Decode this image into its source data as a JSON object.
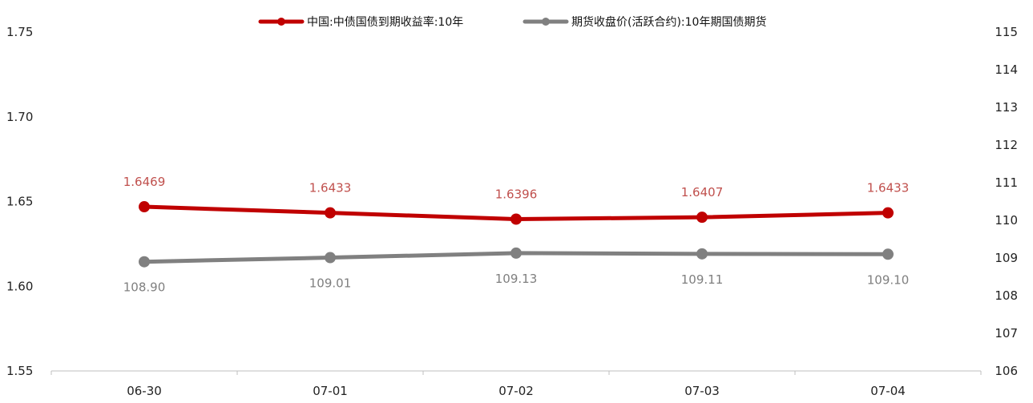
{
  "chart_data": {
    "type": "line",
    "categories": [
      "06-30",
      "07-01",
      "07-02",
      "07-03",
      "07-04"
    ],
    "series": [
      {
        "name": "中国:中债国债到期收益率:10年",
        "axis": "left",
        "color": "#C00000",
        "values": [
          1.6469,
          1.6433,
          1.6396,
          1.6407,
          1.6433
        ],
        "labels": [
          "1.6469",
          "1.6433",
          "1.6396",
          "1.6407",
          "1.6433"
        ]
      },
      {
        "name": "期货收盘价(活跃合约):10年期国债期货",
        "axis": "right",
        "color": "#808080",
        "values": [
          108.9,
          109.01,
          109.13,
          109.11,
          109.1
        ],
        "labels": [
          "108.90",
          "109.01",
          "109.13",
          "109.11",
          "109.10"
        ]
      }
    ],
    "y_left": {
      "min": 1.55,
      "max": 1.75,
      "ticks": [
        "1.55",
        "1.60",
        "1.65",
        "1.70",
        "1.75"
      ]
    },
    "y_right": {
      "min": 106,
      "max": 115,
      "ticks": [
        "106",
        "107",
        "108",
        "109",
        "110",
        "111",
        "112",
        "113",
        "114",
        "115"
      ]
    },
    "grid": false,
    "legend": "top-center"
  }
}
